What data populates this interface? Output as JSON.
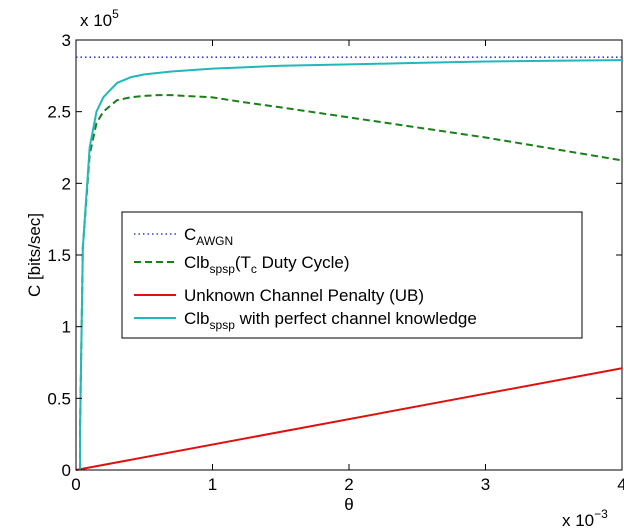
{
  "chart_data": {
    "type": "line",
    "xlabel": "θ",
    "ylabel": "C [bits/sec]",
    "x_multiplier": "x 10",
    "x_multiplier_exp": "−3",
    "y_multiplier": "x 10",
    "y_multiplier_exp": "5",
    "xlim": [
      0,
      4
    ],
    "ylim": [
      0,
      3
    ],
    "grid": false,
    "legend_position": "center-left",
    "x_ticks": [
      {
        "value": 0,
        "label": "0"
      },
      {
        "value": 1,
        "label": "1"
      },
      {
        "value": 2,
        "label": "2"
      },
      {
        "value": 3,
        "label": "3"
      },
      {
        "value": 4,
        "label": "4"
      }
    ],
    "y_ticks": [
      {
        "value": 0,
        "label": "0"
      },
      {
        "value": 0.5,
        "label": "0.5"
      },
      {
        "value": 1,
        "label": "1"
      },
      {
        "value": 1.5,
        "label": "1.5"
      },
      {
        "value": 2,
        "label": "2"
      },
      {
        "value": 2.5,
        "label": "2.5"
      },
      {
        "value": 3,
        "label": "3"
      }
    ],
    "series": [
      {
        "name": "C",
        "name_sub": "AWGN",
        "name_suffix": "",
        "color": "#3a3ad8",
        "dash": "dotted",
        "x": [
          0,
          4
        ],
        "y": [
          2.88,
          2.88
        ]
      },
      {
        "name": "Clb",
        "name_sub": "spsp",
        "name_suffix": "(T",
        "name_sub2": "c",
        "name_suffix2": " Duty Cycle)",
        "color": "#188018",
        "dash": "dashed",
        "x": [
          0.03,
          0.05,
          0.1,
          0.15,
          0.2,
          0.3,
          0.4,
          0.5,
          0.6,
          0.7,
          0.8,
          1.0,
          1.2,
          1.5,
          2.0,
          2.5,
          3.0,
          3.5,
          4.0
        ],
        "y": [
          0.3,
          1.55,
          2.2,
          2.42,
          2.5,
          2.58,
          2.6,
          2.61,
          2.615,
          2.615,
          2.61,
          2.6,
          2.57,
          2.53,
          2.46,
          2.39,
          2.32,
          2.24,
          2.16
        ]
      },
      {
        "name": "Unknown Channel Penalty (UB)",
        "color": "#e01010",
        "dash": "solid",
        "x": [
          0,
          4
        ],
        "y": [
          0,
          0.71
        ]
      },
      {
        "name": "Clb",
        "name_sub": "spsp",
        "name_suffix": " with perfect channel knowledge",
        "color": "#20b8b8",
        "dash": "solid",
        "x": [
          0.03,
          0.05,
          0.1,
          0.15,
          0.2,
          0.3,
          0.4,
          0.5,
          0.7,
          1.0,
          1.5,
          2.0,
          2.5,
          3.0,
          3.5,
          4.0
        ],
        "y": [
          0.3,
          1.55,
          2.25,
          2.5,
          2.6,
          2.7,
          2.74,
          2.76,
          2.78,
          2.8,
          2.82,
          2.83,
          2.84,
          2.85,
          2.855,
          2.86
        ]
      }
    ]
  }
}
